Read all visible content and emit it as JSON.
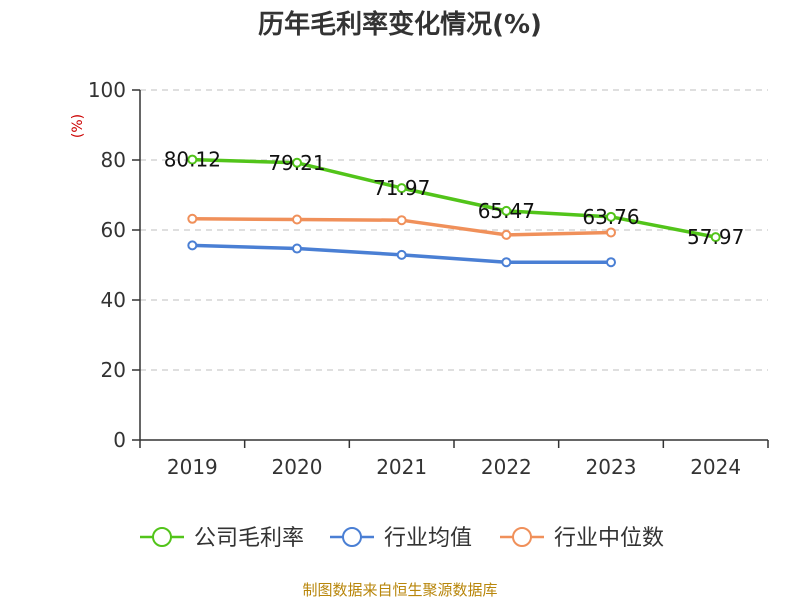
{
  "chart_data": {
    "type": "line",
    "title": "历年毛利率变化情况(%)",
    "ylabel": "(%)",
    "xlabel": "",
    "categories": [
      "2019",
      "2020",
      "2021",
      "2022",
      "2023",
      "2024"
    ],
    "ylim": [
      0,
      100
    ],
    "yticks": [
      0,
      20,
      40,
      60,
      80,
      100
    ],
    "grid": true,
    "legend_position": "bottom",
    "series": [
      {
        "name": "公司毛利率",
        "color": "#52c41a",
        "values": [
          80.12,
          79.21,
          71.97,
          65.47,
          63.76,
          57.97
        ],
        "labels": [
          "80.12",
          "79.21",
          "71.97",
          "65.47",
          "63.76",
          "57.97"
        ]
      },
      {
        "name": "行业均值",
        "color": "#4a7fd4",
        "values": [
          55.6,
          54.7,
          52.9,
          50.8,
          50.8,
          null
        ]
      },
      {
        "name": "行业中位数",
        "color": "#f0905a",
        "values": [
          63.2,
          63.0,
          62.8,
          58.6,
          59.3,
          null
        ]
      }
    ]
  },
  "source": "制图数据来自恒生聚源数据库"
}
